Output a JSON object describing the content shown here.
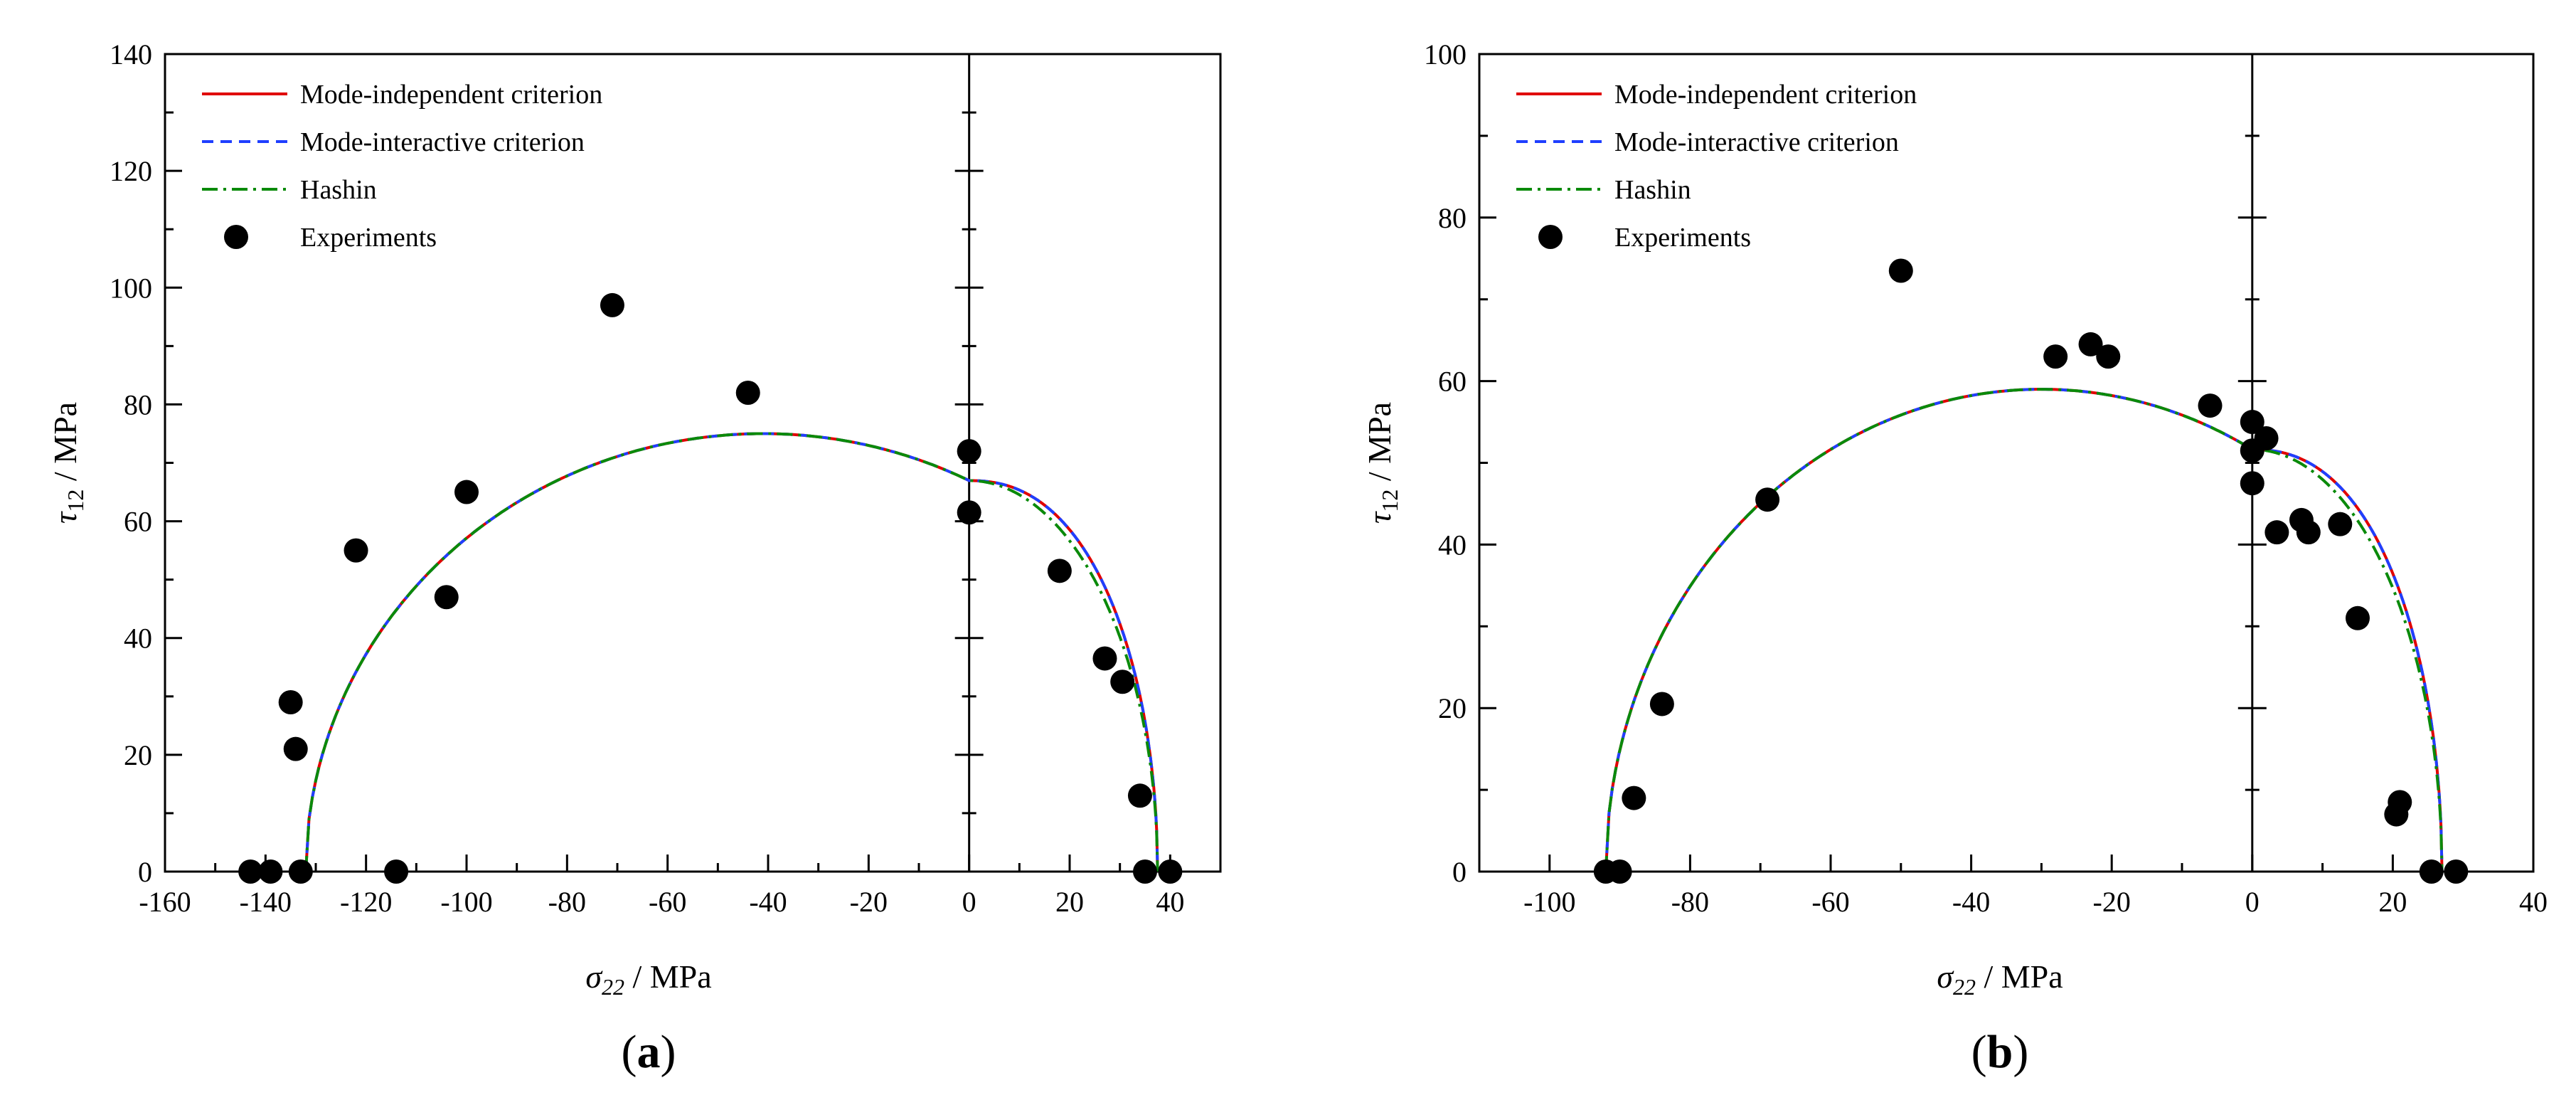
{
  "chart_data": [
    {
      "type": "scatter",
      "panel_label": "a",
      "xlabel": "σ22 / MPa",
      "ylabel": "τ12 / MPa",
      "xlim": [
        -160,
        50
      ],
      "ylim": [
        0,
        140
      ],
      "xticks": [
        -160,
        -140,
        -120,
        -100,
        -80,
        -60,
        -40,
        -20,
        0,
        20,
        40
      ],
      "yticks": [
        0,
        20,
        40,
        60,
        80,
        100,
        120,
        140
      ],
      "legend_position": "top-left",
      "legend": [
        {
          "label": "Mode-independent criterion",
          "color": "#e00000",
          "style": "solid"
        },
        {
          "label": "Mode-interactive criterion",
          "color": "#1f3fff",
          "style": "dashed"
        },
        {
          "label": "Hashin",
          "color": "#0a8a0a",
          "style": "dashdot"
        },
        {
          "label": "Experiments",
          "color": "#000000",
          "style": "marker"
        }
      ],
      "criteria": {
        "Xc": -132,
        "Xt": 37.5,
        "S0": 75,
        "s_shift": -41,
        "t_shear": 66.5,
        "hashin_shear": 66.5
      },
      "experiments": [
        {
          "x": -143,
          "y": 0
        },
        {
          "x": -139,
          "y": 0
        },
        {
          "x": -133,
          "y": 0
        },
        {
          "x": -114,
          "y": 0
        },
        {
          "x": -134,
          "y": 21
        },
        {
          "x": -135,
          "y": 29
        },
        {
          "x": -122,
          "y": 55
        },
        {
          "x": -104,
          "y": 47
        },
        {
          "x": -100,
          "y": 65
        },
        {
          "x": -71,
          "y": 97
        },
        {
          "x": -44,
          "y": 82
        },
        {
          "x": 0,
          "y": 72
        },
        {
          "x": 0,
          "y": 61.5
        },
        {
          "x": 18,
          "y": 51.5
        },
        {
          "x": 27,
          "y": 36.5
        },
        {
          "x": 30.5,
          "y": 32.5
        },
        {
          "x": 34,
          "y": 13
        },
        {
          "x": 35,
          "y": 0
        },
        {
          "x": 40,
          "y": 0
        }
      ]
    },
    {
      "type": "scatter",
      "panel_label": "b",
      "xlabel": "σ22 / MPa",
      "ylabel": "τ12 / MPa",
      "xlim": [
        -110,
        40
      ],
      "ylim": [
        0,
        100
      ],
      "xticks": [
        -100,
        -80,
        -60,
        -40,
        -20,
        0,
        20,
        40
      ],
      "yticks": [
        0,
        20,
        40,
        60,
        80,
        100
      ],
      "legend_position": "top-left",
      "legend": [
        {
          "label": "Mode-independent criterion",
          "color": "#e00000",
          "style": "solid"
        },
        {
          "label": "Mode-interactive criterion",
          "color": "#1f3fff",
          "style": "dashed"
        },
        {
          "label": "Hashin",
          "color": "#0a8a0a",
          "style": "dashdot"
        },
        {
          "label": "Experiments",
          "color": "#000000",
          "style": "marker"
        }
      ],
      "criteria": {
        "Xc": -92,
        "Xt": 27,
        "S0": 59,
        "s_shift": -30,
        "t_shear": 52,
        "hashin_shear": 52
      },
      "experiments": [
        {
          "x": -92,
          "y": 0
        },
        {
          "x": -90,
          "y": 0
        },
        {
          "x": -88,
          "y": 9
        },
        {
          "x": -84,
          "y": 20.5
        },
        {
          "x": -69,
          "y": 45.5
        },
        {
          "x": -50,
          "y": 73.5
        },
        {
          "x": -28,
          "y": 63
        },
        {
          "x": -23,
          "y": 64.5
        },
        {
          "x": -20.5,
          "y": 63
        },
        {
          "x": -6,
          "y": 57
        },
        {
          "x": 0,
          "y": 55
        },
        {
          "x": 0,
          "y": 51.5
        },
        {
          "x": 0,
          "y": 47.5
        },
        {
          "x": 2,
          "y": 53
        },
        {
          "x": 3.5,
          "y": 41.5
        },
        {
          "x": 7,
          "y": 43
        },
        {
          "x": 8,
          "y": 41.5
        },
        {
          "x": 12.5,
          "y": 42.5
        },
        {
          "x": 15,
          "y": 31
        },
        {
          "x": 20.5,
          "y": 7
        },
        {
          "x": 21,
          "y": 8.5
        },
        {
          "x": 25.5,
          "y": 0
        },
        {
          "x": 29,
          "y": 0
        }
      ]
    }
  ]
}
